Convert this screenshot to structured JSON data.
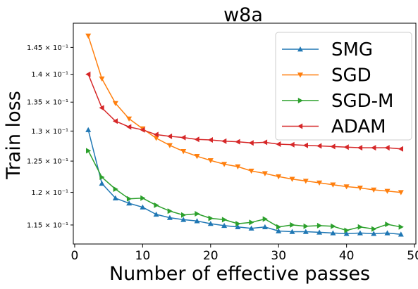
{
  "chart_data": {
    "type": "line",
    "title": "w8a",
    "xlabel": "Number of effective passes",
    "ylabel": "Train loss",
    "xlim": [
      -0.2,
      50.2
    ],
    "ylim": [
      0.11218,
      0.14965
    ],
    "yscale": "log",
    "grid": false,
    "legend_position": "top-right",
    "x_ticks": [
      0,
      10,
      20,
      30,
      40,
      50
    ],
    "x_tick_labels": [
      "0",
      "10",
      "20",
      "30",
      "40",
      "50"
    ],
    "y_ticks": [
      0.115,
      0.12,
      0.125,
      0.13,
      0.135,
      0.14,
      0.145
    ],
    "y_tick_labels": [
      "1.15 × 10⁻¹",
      "1.2 × 10⁻¹",
      "1.25 × 10⁻¹",
      "1.3 × 10⁻¹",
      "1.35 × 10⁻¹",
      "1.4 × 10⁻¹",
      "1.45 × 10⁻¹"
    ],
    "x": [
      2,
      4,
      6,
      8,
      10,
      12,
      14,
      16,
      18,
      20,
      22,
      24,
      26,
      28,
      30,
      32,
      34,
      36,
      38,
      40,
      42,
      44,
      46,
      48
    ],
    "series": [
      {
        "name": "SMG",
        "color": "#1f77b4",
        "marker": "triangle-up",
        "values": [
          0.1302,
          0.1214,
          0.1191,
          0.1183,
          0.1177,
          0.1166,
          0.1161,
          0.1158,
          0.1156,
          0.1152,
          0.1149,
          0.1147,
          0.1145,
          0.1147,
          0.1141,
          0.114,
          0.114,
          0.1139,
          0.1138,
          0.1137,
          0.1138,
          0.1137,
          0.1138,
          0.1136
        ]
      },
      {
        "name": "SGD",
        "color": "#ff7f0e",
        "marker": "triangle-down",
        "values": [
          0.1472,
          0.1392,
          0.1348,
          0.1321,
          0.1304,
          0.1288,
          0.1276,
          0.1266,
          0.1258,
          0.1251,
          0.1245,
          0.1241,
          0.1234,
          0.123,
          0.1225,
          0.1221,
          0.1218,
          0.1215,
          0.1212,
          0.1209,
          0.1207,
          0.1204,
          0.1202,
          0.12
        ]
      },
      {
        "name": "SGD-M",
        "color": "#2ca02c",
        "marker": "triangle-right",
        "values": [
          0.1267,
          0.1224,
          0.1205,
          0.119,
          0.1191,
          0.118,
          0.1171,
          0.1165,
          0.1167,
          0.116,
          0.1158,
          0.1152,
          0.1154,
          0.1159,
          0.1147,
          0.115,
          0.1148,
          0.1149,
          0.1148,
          0.1142,
          0.1147,
          0.1144,
          0.1151,
          0.1147
        ]
      },
      {
        "name": "ADAM",
        "color": "#d62728",
        "marker": "triangle-left",
        "values": [
          0.14,
          0.134,
          0.1317,
          0.1307,
          0.1302,
          0.1294,
          0.1291,
          0.1289,
          0.1286,
          0.1285,
          0.1283,
          0.1282,
          0.128,
          0.1281,
          0.1278,
          0.1277,
          0.1276,
          0.1275,
          0.1274,
          0.1273,
          0.1272,
          0.1272,
          0.1272,
          0.127
        ]
      }
    ]
  }
}
